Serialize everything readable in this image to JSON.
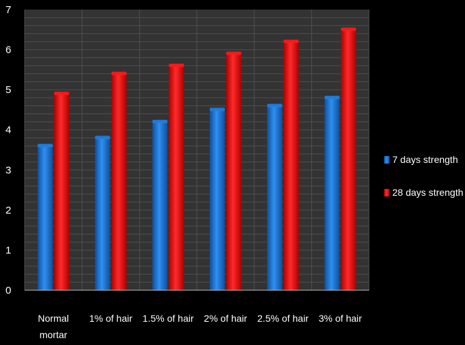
{
  "chart_data": {
    "type": "bar",
    "title": "",
    "xlabel": "",
    "ylabel": "",
    "categories": [
      [
        "Normal",
        "mortar"
      ],
      [
        "1% of hair"
      ],
      [
        "1.5% of hair"
      ],
      [
        "2% of hair"
      ],
      [
        "2.5% of hair"
      ],
      [
        "3% of hair"
      ]
    ],
    "series": [
      {
        "name": "7 days strength",
        "color": "#1f7fe0",
        "values": [
          3.6,
          3.8,
          4.2,
          4.5,
          4.6,
          4.8
        ]
      },
      {
        "name": "28 days strength",
        "color": "#ff1a1a",
        "values": [
          4.9,
          5.4,
          5.6,
          5.9,
          6.2,
          6.5
        ]
      }
    ],
    "ylim": [
      0,
      7
    ],
    "yticks": [
      0,
      1,
      2,
      3,
      4,
      5,
      6,
      7
    ],
    "grid": true,
    "legend_position": "right",
    "colors": {
      "plot_background": "#333333",
      "grid": "#4f4f4f",
      "page_background": "#000000",
      "text": "#ffffff"
    }
  }
}
